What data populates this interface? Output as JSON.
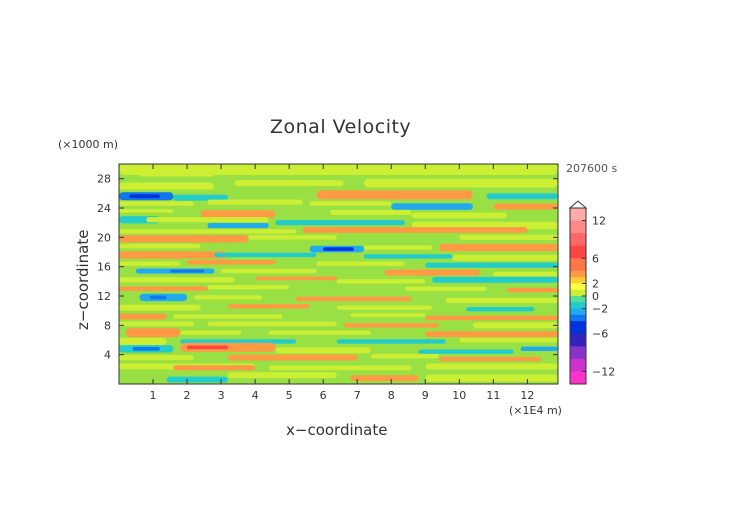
{
  "chart_data": {
    "type": "heatmap",
    "title": "Zonal Velocity",
    "xlabel": "x−coordinate",
    "ylabel": "z−coordinate",
    "x_unit": "(×1E4 m)",
    "y_unit": "(×1000 m)",
    "time_label": "207600 s",
    "xlim": [
      0,
      12.9
    ],
    "ylim": [
      0,
      30
    ],
    "x_ticks": [
      1,
      2,
      3,
      4,
      5,
      6,
      7,
      8,
      9,
      10,
      11,
      12
    ],
    "y_ticks": [
      4,
      8,
      12,
      16,
      20,
      24,
      28
    ],
    "colorbar_ticks": [
      12,
      6,
      2,
      0,
      -2,
      -6,
      -12
    ],
    "colorbar_range": [
      -14,
      14
    ],
    "colors": {
      "-14": "#ff33cc",
      "-12": "#cc33cc",
      "-10": "#8833cc",
      "-8": "#3322bb",
      "-6": "#0033dd",
      "-4": "#1177ee",
      "-3": "#22aaee",
      "-2": "#22cccc",
      "-1": "#55dd99",
      "0": "#99e044",
      "1": "#ccee33",
      "2": "#ffff44",
      "3": "#ffcc33",
      "4": "#ff9944",
      "6": "#ff7744",
      "8": "#ff4444",
      "10": "#ff6666",
      "12": "#ff8888",
      "14": "#ffaaaa"
    },
    "background": "#99e044",
    "bands": [
      {
        "x": [
          0.0,
          12.9
        ],
        "z": 29.3,
        "h": 1.6,
        "v": 1
      },
      {
        "x": [
          0.6,
          2.8
        ],
        "z": 28.6,
        "h": 0.6,
        "v": 1
      },
      {
        "x": [
          0.0,
          2.8
        ],
        "z": 27.0,
        "h": 1.0,
        "v": 1
      },
      {
        "x": [
          3.4,
          6.6
        ],
        "z": 27.4,
        "h": 0.8,
        "v": 1
      },
      {
        "x": [
          7.2,
          12.9
        ],
        "z": 27.4,
        "h": 1.2,
        "v": 1
      },
      {
        "x": [
          0.0,
          1.6
        ],
        "z": 25.6,
        "h": 1.1,
        "v": -4
      },
      {
        "x": [
          0.3,
          1.2
        ],
        "z": 25.6,
        "h": 0.5,
        "v": -6
      },
      {
        "x": [
          1.6,
          3.2
        ],
        "z": 25.4,
        "h": 0.8,
        "v": -2
      },
      {
        "x": [
          5.8,
          10.4
        ],
        "z": 25.8,
        "h": 1.2,
        "v": 4
      },
      {
        "x": [
          10.8,
          12.9
        ],
        "z": 25.6,
        "h": 0.8,
        "v": -2
      },
      {
        "x": [
          0.0,
          2.2
        ],
        "z": 24.6,
        "h": 0.6,
        "v": 1
      },
      {
        "x": [
          2.6,
          5.4
        ],
        "z": 24.8,
        "h": 0.7,
        "v": 1
      },
      {
        "x": [
          5.6,
          8.0
        ],
        "z": 24.6,
        "h": 0.6,
        "v": 1
      },
      {
        "x": [
          8.0,
          10.4
        ],
        "z": 24.2,
        "h": 0.9,
        "v": -3
      },
      {
        "x": [
          11.0,
          12.9
        ],
        "z": 24.2,
        "h": 0.8,
        "v": 4
      },
      {
        "x": [
          0.0,
          1.6
        ],
        "z": 23.6,
        "h": 0.5,
        "v": 1
      },
      {
        "x": [
          2.4,
          4.6
        ],
        "z": 23.2,
        "h": 1.0,
        "v": 4
      },
      {
        "x": [
          6.2,
          8.6
        ],
        "z": 23.4,
        "h": 0.7,
        "v": 1
      },
      {
        "x": [
          8.6,
          11.4
        ],
        "z": 23.0,
        "h": 0.8,
        "v": 1
      },
      {
        "x": [
          0.0,
          1.2
        ],
        "z": 22.4,
        "h": 1.0,
        "v": -2
      },
      {
        "x": [
          0.8,
          4.4
        ],
        "z": 22.4,
        "h": 0.7,
        "v": 1
      },
      {
        "x": [
          2.6,
          4.4
        ],
        "z": 21.6,
        "h": 0.7,
        "v": -3
      },
      {
        "x": [
          4.6,
          8.4
        ],
        "z": 22.0,
        "h": 0.7,
        "v": -2
      },
      {
        "x": [
          8.6,
          12.9
        ],
        "z": 21.6,
        "h": 1.0,
        "v": 1
      },
      {
        "x": [
          0.0,
          5.2
        ],
        "z": 20.8,
        "h": 0.6,
        "v": 1
      },
      {
        "x": [
          5.4,
          12.0
        ],
        "z": 21.0,
        "h": 0.8,
        "v": 4
      },
      {
        "x": [
          0.0,
          3.8
        ],
        "z": 19.8,
        "h": 1.0,
        "v": 4
      },
      {
        "x": [
          3.8,
          6.4
        ],
        "z": 20.0,
        "h": 0.6,
        "v": 1
      },
      {
        "x": [
          10.0,
          12.9
        ],
        "z": 20.0,
        "h": 0.7,
        "v": 1
      },
      {
        "x": [
          0.0,
          2.4
        ],
        "z": 18.8,
        "h": 0.6,
        "v": 1
      },
      {
        "x": [
          5.6,
          7.2
        ],
        "z": 18.4,
        "h": 0.9,
        "v": -3
      },
      {
        "x": [
          6.0,
          6.9
        ],
        "z": 18.4,
        "h": 0.5,
        "v": -6
      },
      {
        "x": [
          7.2,
          9.2
        ],
        "z": 18.6,
        "h": 0.6,
        "v": 1
      },
      {
        "x": [
          9.4,
          12.9
        ],
        "z": 18.6,
        "h": 1.0,
        "v": 4
      },
      {
        "x": [
          0.0,
          3.2
        ],
        "z": 17.6,
        "h": 1.0,
        "v": 4
      },
      {
        "x": [
          2.8,
          5.8
        ],
        "z": 17.6,
        "h": 0.6,
        "v": -2
      },
      {
        "x": [
          7.2,
          9.8
        ],
        "z": 17.4,
        "h": 0.6,
        "v": -2
      },
      {
        "x": [
          9.8,
          12.9
        ],
        "z": 17.2,
        "h": 0.8,
        "v": 1
      },
      {
        "x": [
          0.0,
          1.8
        ],
        "z": 16.4,
        "h": 0.6,
        "v": 1
      },
      {
        "x": [
          2.0,
          4.6
        ],
        "z": 16.6,
        "h": 0.6,
        "v": 4
      },
      {
        "x": [
          5.8,
          8.4
        ],
        "z": 16.4,
        "h": 0.6,
        "v": 1
      },
      {
        "x": [
          9.0,
          12.9
        ],
        "z": 16.2,
        "h": 0.7,
        "v": -2
      },
      {
        "x": [
          0.5,
          2.8
        ],
        "z": 15.4,
        "h": 0.7,
        "v": -3
      },
      {
        "x": [
          1.5,
          2.5
        ],
        "z": 15.4,
        "h": 0.4,
        "v": -4
      },
      {
        "x": [
          3.0,
          5.8
        ],
        "z": 15.4,
        "h": 0.6,
        "v": 1
      },
      {
        "x": [
          7.8,
          10.6
        ],
        "z": 15.2,
        "h": 0.8,
        "v": 4
      },
      {
        "x": [
          11.0,
          12.9
        ],
        "z": 15.0,
        "h": 0.6,
        "v": 1
      },
      {
        "x": [
          0.0,
          3.4
        ],
        "z": 14.2,
        "h": 0.7,
        "v": 1
      },
      {
        "x": [
          4.0,
          6.4
        ],
        "z": 14.4,
        "h": 0.5,
        "v": 4
      },
      {
        "x": [
          6.4,
          9.0
        ],
        "z": 14.0,
        "h": 0.6,
        "v": 1
      },
      {
        "x": [
          9.2,
          12.9
        ],
        "z": 14.2,
        "h": 0.8,
        "v": -2
      },
      {
        "x": [
          0.0,
          2.6
        ],
        "z": 13.0,
        "h": 0.6,
        "v": 4
      },
      {
        "x": [
          2.6,
          5.0
        ],
        "z": 13.2,
        "h": 0.6,
        "v": 1
      },
      {
        "x": [
          8.4,
          10.8
        ],
        "z": 13.0,
        "h": 0.6,
        "v": 1
      },
      {
        "x": [
          11.4,
          12.9
        ],
        "z": 12.8,
        "h": 0.6,
        "v": 4
      },
      {
        "x": [
          0.6,
          2.0
        ],
        "z": 11.8,
        "h": 1.0,
        "v": -3
      },
      {
        "x": [
          0.9,
          1.4
        ],
        "z": 11.8,
        "h": 0.5,
        "v": -4
      },
      {
        "x": [
          2.2,
          4.2
        ],
        "z": 11.8,
        "h": 0.6,
        "v": 1
      },
      {
        "x": [
          5.2,
          8.6
        ],
        "z": 11.6,
        "h": 0.6,
        "v": 4
      },
      {
        "x": [
          9.6,
          12.9
        ],
        "z": 11.4,
        "h": 0.7,
        "v": 1
      },
      {
        "x": [
          0.0,
          2.4
        ],
        "z": 10.4,
        "h": 0.8,
        "v": 1
      },
      {
        "x": [
          3.2,
          5.6
        ],
        "z": 10.6,
        "h": 0.6,
        "v": 4
      },
      {
        "x": [
          6.4,
          9.2
        ],
        "z": 10.4,
        "h": 0.6,
        "v": 1
      },
      {
        "x": [
          10.2,
          12.2
        ],
        "z": 10.2,
        "h": 0.6,
        "v": -2
      },
      {
        "x": [
          0.0,
          1.4
        ],
        "z": 9.2,
        "h": 0.8,
        "v": 4
      },
      {
        "x": [
          1.6,
          4.8
        ],
        "z": 9.2,
        "h": 0.6,
        "v": 1
      },
      {
        "x": [
          6.8,
          9.0
        ],
        "z": 9.4,
        "h": 0.5,
        "v": 1
      },
      {
        "x": [
          9.0,
          12.9
        ],
        "z": 9.0,
        "h": 0.6,
        "v": 4
      },
      {
        "x": [
          0.0,
          2.2
        ],
        "z": 8.2,
        "h": 0.6,
        "v": 1
      },
      {
        "x": [
          2.6,
          6.4
        ],
        "z": 8.2,
        "h": 0.6,
        "v": 1
      },
      {
        "x": [
          6.6,
          9.4
        ],
        "z": 8.0,
        "h": 0.6,
        "v": 4
      },
      {
        "x": [
          10.4,
          12.9
        ],
        "z": 8.0,
        "h": 0.8,
        "v": 1
      },
      {
        "x": [
          0.2,
          1.8
        ],
        "z": 7.0,
        "h": 1.2,
        "v": 4
      },
      {
        "x": [
          1.8,
          3.6
        ],
        "z": 7.0,
        "h": 0.6,
        "v": 1
      },
      {
        "x": [
          4.4,
          7.4
        ],
        "z": 7.0,
        "h": 0.6,
        "v": 1
      },
      {
        "x": [
          9.0,
          12.9
        ],
        "z": 6.8,
        "h": 0.8,
        "v": 4
      },
      {
        "x": [
          0.0,
          1.4
        ],
        "z": 5.8,
        "h": 1.0,
        "v": 1
      },
      {
        "x": [
          1.8,
          5.2
        ],
        "z": 5.8,
        "h": 0.6,
        "v": -2
      },
      {
        "x": [
          6.4,
          9.6
        ],
        "z": 5.8,
        "h": 0.6,
        "v": -2
      },
      {
        "x": [
          10.0,
          12.9
        ],
        "z": 6.0,
        "h": 0.6,
        "v": 1
      },
      {
        "x": [
          0.0,
          1.6
        ],
        "z": 4.8,
        "h": 1.0,
        "v": -2
      },
      {
        "x": [
          0.4,
          1.2
        ],
        "z": 4.8,
        "h": 0.5,
        "v": -4
      },
      {
        "x": [
          1.8,
          4.6
        ],
        "z": 5.0,
        "h": 1.2,
        "v": 4
      },
      {
        "x": [
          2.0,
          3.2
        ],
        "z": 5.0,
        "h": 0.5,
        "v": 8
      },
      {
        "x": [
          4.6,
          7.4
        ],
        "z": 4.6,
        "h": 0.8,
        "v": 1
      },
      {
        "x": [
          8.8,
          11.6
        ],
        "z": 4.4,
        "h": 0.6,
        "v": -2
      },
      {
        "x": [
          11.8,
          12.9
        ],
        "z": 4.8,
        "h": 0.6,
        "v": -3
      },
      {
        "x": [
          0.0,
          2.2
        ],
        "z": 3.6,
        "h": 0.7,
        "v": 1
      },
      {
        "x": [
          3.2,
          7.0
        ],
        "z": 3.6,
        "h": 0.8,
        "v": 4
      },
      {
        "x": [
          7.4,
          9.4
        ],
        "z": 3.8,
        "h": 0.6,
        "v": 1
      },
      {
        "x": [
          9.4,
          12.4
        ],
        "z": 3.4,
        "h": 0.6,
        "v": 4
      },
      {
        "x": [
          0.0,
          4.0
        ],
        "z": 2.4,
        "h": 0.8,
        "v": 1
      },
      {
        "x": [
          1.6,
          4.0
        ],
        "z": 2.2,
        "h": 0.7,
        "v": 4
      },
      {
        "x": [
          4.4,
          8.6
        ],
        "z": 2.2,
        "h": 0.6,
        "v": 1
      },
      {
        "x": [
          9.0,
          12.9
        ],
        "z": 2.4,
        "h": 0.8,
        "v": 1
      },
      {
        "x": [
          1.4,
          3.2
        ],
        "z": 0.6,
        "h": 0.8,
        "v": -2
      },
      {
        "x": [
          3.2,
          6.4
        ],
        "z": 1.2,
        "h": 0.8,
        "v": 1
      },
      {
        "x": [
          6.8,
          8.8
        ],
        "z": 0.8,
        "h": 0.8,
        "v": 4
      },
      {
        "x": [
          9.0,
          12.9
        ],
        "z": 0.8,
        "h": 1.0,
        "v": 1
      }
    ]
  }
}
